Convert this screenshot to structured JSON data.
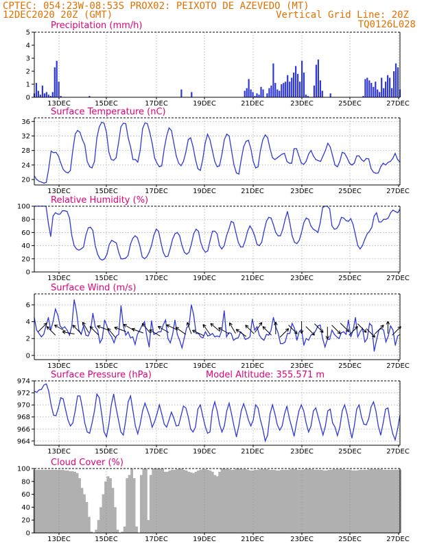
{
  "header": {
    "line1_left": "CPTEC:   054:23W-08:53S   PROX02: PEIXOTO DE AZEVEDO (MT)",
    "line2_left": "12DEC2020 20Z (GMT)",
    "line2_right": "Vertical Grid Line: 20Z",
    "line3_right": "TQ0126L028"
  },
  "colors": {
    "header": "#e07000",
    "title": "#e0007a",
    "series": "#2e38d8",
    "cloud": "#b0b0b0",
    "arrow": "#000000"
  },
  "chart_data": [
    {
      "type": "bar",
      "title": "Precipitation (mm/h)",
      "x_labels": [
        "13DEC",
        "15DEC",
        "17DEC",
        "19DEC",
        "21DEC",
        "23DEC",
        "25DEC",
        "27DEC"
      ],
      "ylim": [
        0,
        5
      ],
      "yticks": [
        0,
        1,
        2,
        3,
        4,
        5
      ],
      "x_start": "12DEC2020 20Z",
      "x_step_hours": 3,
      "values": [
        0.3,
        1.1,
        0.5,
        0.2,
        0.9,
        0.3,
        0.4,
        0.2,
        0.1,
        0.4,
        2.3,
        2.8,
        1.2,
        0.1,
        0,
        0,
        0,
        0,
        0,
        0,
        0,
        0,
        0,
        0,
        0,
        0,
        0,
        0.1,
        0,
        0,
        0,
        0,
        0,
        0,
        0,
        0,
        0,
        0,
        0,
        0,
        0,
        0,
        0,
        0,
        0,
        0,
        0,
        0,
        0,
        0,
        0,
        0,
        0,
        0,
        0,
        0,
        0,
        0,
        0,
        0,
        0,
        0,
        0,
        0,
        0,
        0,
        0,
        0,
        0,
        0,
        0,
        0,
        0.6,
        0,
        0,
        0,
        0,
        0.4,
        0,
        0,
        0,
        0,
        0,
        0,
        0,
        0,
        0,
        0,
        0,
        0,
        0,
        0,
        0,
        0,
        0,
        0,
        0,
        0,
        0,
        0,
        0,
        0,
        0,
        0.5,
        0.7,
        1.4,
        0.6,
        0.4,
        0.1,
        0.3,
        0.2,
        0.8,
        0.6,
        0,
        0.3,
        0.7,
        0.9,
        2.6,
        1.1,
        0.6,
        0.5,
        1.0,
        1.1,
        1.2,
        1.7,
        1.2,
        1.5,
        1.9,
        2.4,
        1.8,
        1.2,
        2.8,
        1.9,
        0.2,
        0.1,
        0,
        0,
        0.9,
        2.5,
        2.9,
        1.3,
        0.5,
        0,
        0,
        0,
        0.3,
        0,
        0,
        0,
        0,
        0,
        0,
        0,
        0,
        0,
        0,
        0,
        0,
        0,
        0,
        0,
        0.1,
        1.4,
        1.5,
        1.3,
        1.1,
        0.8,
        1.2,
        0.6,
        0.4,
        1.5,
        0.7,
        1.2,
        1.7,
        1.5,
        0.7,
        2.0,
        2.6,
        2.3,
        0.6
      ]
    },
    {
      "type": "line",
      "title": "Surface Temperature (nC)",
      "x_labels": [
        "13DEC",
        "15DEC",
        "17DEC",
        "19DEC",
        "21DEC",
        "23DEC",
        "25DEC",
        "27DEC"
      ],
      "ylim": [
        18.5,
        37
      ],
      "yticks": [
        20,
        24,
        28,
        32,
        36
      ],
      "x_start": "12DEC2020 20Z",
      "x_step_hours": 3,
      "values": [
        21,
        20,
        19.5,
        19.3,
        19,
        19.2,
        23,
        27.8,
        27.4,
        27.5,
        26.5,
        24.5,
        22.8,
        22.1,
        21.8,
        22.5,
        28,
        32.5,
        33.5,
        33,
        31,
        29.5,
        25,
        23.5,
        23.2,
        25,
        31.5,
        34.5,
        35.8,
        35.5,
        33,
        27.5,
        25.5,
        25.3,
        26,
        30,
        34.5,
        35.5,
        35.4,
        31.5,
        29,
        25.5,
        25.5,
        24.8,
        28,
        34,
        35.6,
        35.4,
        33,
        30,
        26,
        24.5,
        23.5,
        23.8,
        28.5,
        32,
        34.2,
        33.5,
        30,
        26.5,
        24.5,
        23.8,
        25,
        27.5,
        31,
        31.5,
        29,
        25.5,
        23,
        22.5,
        25.5,
        30,
        32.5,
        31,
        28,
        25,
        23.5,
        23.8,
        27,
        31,
        32.5,
        32,
        28,
        24,
        21.8,
        21.5,
        25.5,
        29,
        30.5,
        30.8,
        28.5,
        25,
        23.2,
        23.5,
        28,
        31,
        32.3,
        31.5,
        28.5,
        26,
        25.5,
        26,
        26.5,
        27,
        27.2,
        25,
        24.5,
        24.5,
        28.5,
        28.5,
        26.5,
        24.5,
        24.2,
        25,
        27,
        28,
        26.5,
        25.5,
        25.2,
        25,
        26.5,
        28,
        30,
        29,
        26.5,
        24,
        23.5,
        25,
        27.5,
        27.2,
        26,
        24.5,
        24,
        24.5,
        26.5,
        26.5,
        25.5,
        25,
        25.8,
        25.7,
        23,
        22,
        21.7,
        21.8,
        23.5,
        24.5,
        24,
        24.7,
        25,
        25.8,
        27.2,
        25.5,
        24.8
      ]
    },
    {
      "type": "line",
      "title": "Relative Humidity (%)",
      "x_labels": [
        "13DEC",
        "15DEC",
        "17DEC",
        "19DEC",
        "21DEC",
        "23DEC",
        "25DEC",
        "27DEC"
      ],
      "ylim": [
        0,
        100
      ],
      "yticks": [
        0,
        20,
        40,
        60,
        80,
        100
      ],
      "x_start": "12DEC2020 20Z",
      "x_step_hours": 3,
      "values": [
        100,
        100,
        100,
        100,
        100,
        100,
        74,
        54,
        85,
        90,
        88,
        88,
        93,
        93,
        92,
        82,
        55,
        40,
        35,
        33,
        35,
        38,
        56,
        67,
        68,
        63,
        40,
        27,
        20,
        18,
        20,
        27,
        42,
        48,
        46,
        44,
        30,
        20,
        20,
        21,
        25,
        42,
        51,
        55,
        52,
        40,
        23,
        20,
        23,
        30,
        40,
        56,
        65,
        62,
        45,
        30,
        23,
        24,
        36,
        50,
        58,
        60,
        55,
        40,
        30,
        27,
        30,
        42,
        58,
        65,
        62,
        45,
        35,
        30,
        32,
        48,
        62,
        62,
        58,
        40,
        35,
        40,
        55,
        65,
        77,
        75,
        60,
        45,
        38,
        38,
        48,
        62,
        70,
        64,
        55,
        42,
        40,
        45,
        62,
        77,
        83,
        82,
        72,
        60,
        55,
        55,
        65,
        80,
        92,
        75,
        55,
        45,
        43,
        48,
        60,
        75,
        82,
        80,
        70,
        65,
        63,
        60,
        75,
        98,
        100,
        100,
        96,
        70,
        65,
        66,
        72,
        83,
        82,
        78,
        77,
        81,
        72,
        56,
        40,
        35,
        40,
        50,
        58,
        62,
        68,
        85,
        90,
        76,
        76,
        80,
        80,
        82,
        90,
        94,
        92,
        90,
        95
      ]
    },
    {
      "type": "line+vector",
      "title": "Surface Wind (m/s)",
      "x_labels": [
        "13DEC",
        "15DEC",
        "17DEC",
        "19DEC",
        "21DEC",
        "23DEC",
        "25DEC",
        "27DEC"
      ],
      "ylim": [
        -0.5,
        7.3
      ],
      "yticks": [
        0,
        2,
        4,
        6
      ],
      "x_start": "12DEC2020 20Z",
      "x_step_hours": 3,
      "values": [
        4.5,
        3.0,
        2.6,
        2.2,
        2.5,
        3.5,
        4.5,
        3.0,
        4.0,
        5.5,
        4.8,
        3.5,
        3.2,
        3.4,
        3.0,
        2.4,
        3.5,
        6.6,
        5.2,
        3.0,
        2.5,
        3.5,
        2.4,
        2.3,
        3.0,
        5.0,
        3.4,
        3.0,
        1.5,
        2.0,
        4.2,
        3.5,
        2.6,
        2.2,
        1.5,
        2.3,
        2.5,
        5.9,
        3.5,
        2.4,
        2.8,
        2.1,
        2.2,
        1.3,
        2.5,
        3.0,
        3.6,
        4.0,
        2.3,
        1.0,
        4.1,
        2.5,
        2.6,
        2.8,
        2.8,
        3.6,
        4.2,
        2.0,
        1.5,
        2.5,
        4.2,
        2.5,
        1.8,
        0.9,
        2.1,
        3.3,
        3.5,
        6.0,
        4.8,
        2.6,
        2.6,
        2.2,
        2.1,
        2.8,
        2.3,
        2.4,
        2.6,
        2.2,
        2.3,
        2.2,
        3.0,
        5.3,
        2.2,
        2.7,
        2.6,
        1.8,
        2.0,
        2.1,
        2.8,
        2.5,
        1.9,
        2.0,
        2.2,
        4.3,
        3.0,
        3.4,
        2.4,
        2.0,
        1.8,
        2.5,
        2.4,
        3.0,
        4.5,
        3.4,
        2.7,
        1.4,
        1.4,
        1.6,
        2.6,
        2.6,
        3.8,
        3.2,
        1.8,
        2.8,
        3.1,
        1.2,
        2.0,
        1.8,
        2.4,
        2.5,
        2.9,
        3.5,
        3.6,
        2.0,
        1.0,
        1.9,
        1.9,
        3.0,
        2.5,
        2.2,
        2.0,
        2.7,
        2.8,
        2.5,
        4.2,
        2.2,
        3.0,
        4.5,
        2.2,
        2.8,
        3.2,
        1.6,
        2.0,
        3.8,
        3.5,
        0.5,
        1.8,
        3.0,
        3.2,
        3.0,
        1.6,
        2.3,
        3.5,
        3.0,
        1.2,
        2.3,
        2.5
      ],
      "arrows_deg": [
        315,
        225,
        210,
        190,
        225,
        240,
        225,
        200,
        230,
        200,
        210,
        200,
        230,
        210,
        210,
        205,
        215,
        250,
        205,
        235,
        220,
        210,
        240,
        215,
        225,
        305,
        225,
        270,
        315,
        45,
        90,
        45,
        45,
        90,
        45,
        45,
        315,
        45,
        45,
        315,
        270,
        315
      ]
    },
    {
      "type": "line",
      "title": "Surface Pressure (hPa)",
      "annotation": "Model Altitude: 355.571  m",
      "x_labels": [
        "13DEC",
        "15DEC",
        "17DEC",
        "19DEC",
        "21DEC",
        "23DEC",
        "25DEC",
        "27DEC"
      ],
      "ylim": [
        963.3,
        974
      ],
      "yticks": [
        964,
        966,
        968,
        970,
        972,
        974
      ],
      "x_start": "12DEC2020 20Z",
      "x_step_hours": 3,
      "values": [
        972.3,
        972.1,
        972.5,
        972.6,
        973.3,
        973.5,
        972.3,
        970,
        968.3,
        968.2,
        969.5,
        971.2,
        971,
        969.2,
        967.5,
        966.5,
        967,
        969,
        971.5,
        971.5,
        969.5,
        967,
        965.5,
        965.3,
        967,
        969,
        971.8,
        971.2,
        968.5,
        965.5,
        964.7,
        966.8,
        970,
        971.8,
        969.5,
        967.5,
        965.5,
        965,
        967.5,
        970.5,
        971.5,
        969,
        966.5,
        965.2,
        966.8,
        969,
        970.3,
        969.2,
        968,
        966.3,
        967.2,
        968.5,
        970,
        968.5,
        966.8,
        966.3,
        967.5,
        968.8,
        967.8,
        966.5,
        966.6,
        968.2,
        969.8,
        969.5,
        968,
        966,
        965.5,
        966.3,
        969.3,
        970,
        968.2,
        966.5,
        965.3,
        965.5,
        969,
        970.5,
        969,
        966.8,
        965.5,
        966.5,
        969,
        970.3,
        968.5,
        966.5,
        964.7,
        966.5,
        969,
        970.2,
        969,
        967.5,
        966.5,
        967.5,
        970,
        969.5,
        967.5,
        966,
        964,
        965,
        968.5,
        970,
        968.5,
        966.7,
        965.8,
        966.5,
        968.5,
        969.8,
        967.8,
        966.3,
        964.8,
        967,
        969,
        970,
        969,
        967,
        965.5,
        966.5,
        969,
        969.5,
        968,
        966.5,
        965,
        966.5,
        969,
        969.3,
        967,
        966.3,
        964.9,
        966.3,
        969,
        970,
        968.5,
        966.3,
        964.5,
        966.5,
        969.3,
        970,
        968,
        966.8,
        966.7,
        967.7,
        969.7,
        970.5,
        969,
        966.5,
        965,
        967,
        969.3,
        969.5,
        967,
        965.2,
        964.2,
        966,
        968.3
      ]
    },
    {
      "type": "bar",
      "title": "Cloud Cover (%)",
      "x_labels": [
        "13DEC",
        "15DEC",
        "17DEC",
        "19DEC",
        "21DEC",
        "23DEC",
        "25DEC",
        "27DEC"
      ],
      "ylim": [
        0,
        100
      ],
      "yticks": [
        0,
        20,
        40,
        60,
        80,
        100
      ],
      "x_start": "12DEC2020 20Z",
      "x_step_hours": 3,
      "values": [
        98,
        98,
        98,
        98,
        98,
        98,
        98,
        98,
        98,
        98,
        98,
        98,
        98,
        97,
        97,
        96,
        96,
        95,
        93,
        85,
        70,
        60,
        48,
        25,
        2,
        0,
        5,
        20,
        40,
        60,
        80,
        88,
        85,
        70,
        40,
        5,
        0,
        2,
        10,
        85,
        90,
        100,
        85,
        10,
        0,
        90,
        100,
        100,
        20,
        90,
        100,
        100,
        100,
        100,
        100,
        95,
        95,
        97,
        98,
        98,
        99,
        100,
        100,
        98,
        97,
        95,
        94,
        93,
        95,
        97,
        98,
        99,
        99,
        98,
        97,
        95,
        90,
        88,
        95,
        100,
        100,
        99,
        99,
        98,
        98,
        100,
        100,
        99,
        99,
        99,
        98,
        97,
        97,
        98,
        98,
        99,
        99,
        99,
        99,
        98,
        98,
        98,
        97,
        97,
        98,
        98,
        98,
        98,
        99,
        99,
        99,
        98,
        98,
        98,
        99,
        99,
        99,
        99,
        98,
        98,
        98,
        98,
        97,
        97,
        98,
        98,
        99,
        99,
        99,
        99,
        99,
        98,
        98,
        98,
        97,
        97,
        97,
        98,
        98,
        98,
        98,
        99,
        99,
        99,
        99,
        99,
        99,
        98,
        98,
        98,
        98,
        98,
        98,
        98,
        98
      ]
    }
  ]
}
